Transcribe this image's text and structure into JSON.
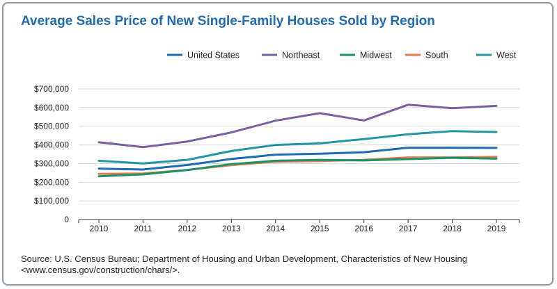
{
  "title": "Average Sales Price of New Single-Family Houses Sold by Region",
  "source": {
    "line1": "Source: U.S. Census Bureau; Department of Housing and Urban Development, Characteristics of New Housing",
    "line2": "<www.census.gov/construction/chars/>."
  },
  "chart_data": {
    "type": "line",
    "title": "Average Sales Price of New Single-Family Houses Sold by Region",
    "x": [
      "2010",
      "2011",
      "2012",
      "2013",
      "2014",
      "2015",
      "2016",
      "2017",
      "2018",
      "2019"
    ],
    "ylim": [
      0,
      700000
    ],
    "yticks": [
      0,
      100000,
      200000,
      300000,
      400000,
      500000,
      600000,
      700000
    ],
    "ytick_labels": [
      "0",
      "$100,000",
      "$200,000",
      "$300,000",
      "$400,000",
      "$500,000",
      "$600,000",
      "$700,000"
    ],
    "grid": true,
    "legend_position": "top-right",
    "series": [
      {
        "name": "United States",
        "color": "#1f6ab0",
        "values": [
          272900,
          267900,
          292200,
          324500,
          347700,
          352700,
          360900,
          384900,
          385000,
          384000
        ]
      },
      {
        "name": "Northeast",
        "color": "#7b5fa3",
        "values": [
          414000,
          388000,
          418000,
          467000,
          530000,
          570000,
          531000,
          615000,
          597000,
          609000
        ]
      },
      {
        "name": "Midwest",
        "color": "#1a9467",
        "values": [
          232000,
          242000,
          265000,
          297000,
          315000,
          320000,
          317000,
          324000,
          331000,
          326000
        ]
      },
      {
        "name": "South",
        "color": "#e8774d",
        "values": [
          245000,
          247000,
          266000,
          292000,
          310000,
          314000,
          320000,
          333000,
          333000,
          336000
        ]
      },
      {
        "name": "West",
        "color": "#2396a5",
        "values": [
          315000,
          301000,
          320000,
          367000,
          400000,
          408000,
          431000,
          457000,
          474000,
          469000
        ]
      }
    ]
  }
}
